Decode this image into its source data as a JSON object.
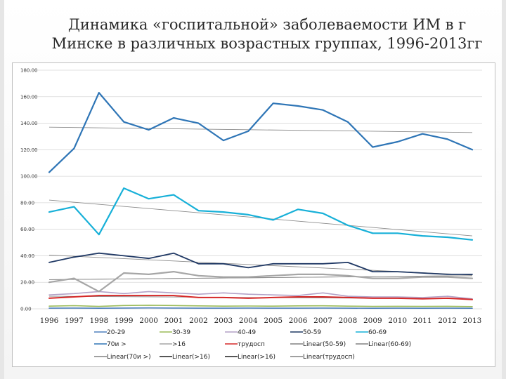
{
  "slide": {
    "title_line1": "Динамика «госпитальной» заболеваемости ИМ в г",
    "title_line2": "Минске в различных возрастных группах, 1996-2013гг"
  },
  "colors": {
    "grid": "#d9d9d9",
    "trend": "#8c8c8c"
  },
  "chart_data": {
    "type": "line",
    "title": "Динамика «госпитальной» заболеваемости ИМ в г Минске в различных возрастных группах, 1996-2013гг",
    "xlabel": "",
    "ylabel": "",
    "ylim": [
      0,
      180
    ],
    "yticks": [
      0,
      20,
      40,
      60,
      80,
      100,
      120,
      140,
      160,
      180
    ],
    "ytick_labels": [
      "0.00",
      "20.00",
      "40.00",
      "60.00",
      "80.00",
      "100.00",
      "120.00",
      "140.00",
      "160.00",
      "180.00"
    ],
    "categories": [
      "1996",
      "1997",
      "1998",
      "1999",
      "2000",
      "2001",
      "2002",
      "2003",
      "2004",
      "2005",
      "2006",
      "2007",
      "2008",
      "2009",
      "2010",
      "2011",
      "2012",
      "2013"
    ],
    "grid": "horizontal",
    "legend": "bottom",
    "series": [
      {
        "name": "20-29",
        "color": "#4f81bd",
        "width": 1.6,
        "values": [
          0.5,
          0.6,
          0.4,
          0.6,
          0.7,
          0.6,
          0.5,
          0.5,
          0.6,
          0.5,
          0.5,
          0.6,
          0.5,
          0.4,
          0.5,
          0.4,
          0.5,
          0.4
        ]
      },
      {
        "name": "30-39",
        "color": "#9bbb59",
        "width": 1.6,
        "values": [
          2.0,
          2.4,
          1.8,
          2.5,
          2.7,
          2.5,
          2.2,
          2.0,
          2.1,
          2.0,
          2.2,
          2.3,
          2.0,
          1.8,
          1.9,
          1.8,
          1.9,
          1.7
        ]
      },
      {
        "name": "40-49",
        "color": "#b3a2c7",
        "width": 1.6,
        "values": [
          10.5,
          11.5,
          13.0,
          11.5,
          13.0,
          12.0,
          11.0,
          12.0,
          11.0,
          10.5,
          10.0,
          12.0,
          9.5,
          9.0,
          9.0,
          8.5,
          9.5,
          7.5
        ]
      },
      {
        "name": "50-59",
        "color": "#1f3864",
        "width": 1.8,
        "values": [
          35,
          39,
          42,
          40,
          38,
          42,
          34,
          34,
          31,
          34,
          34,
          34,
          35,
          28,
          28,
          27,
          26,
          26
        ]
      },
      {
        "name": "60-69",
        "color": "#17b0d8",
        "width": 2.2,
        "values": [
          73,
          77,
          56,
          91,
          83,
          86,
          74,
          73,
          71,
          67,
          75,
          72,
          63,
          57,
          57,
          55,
          54,
          52
        ]
      },
      {
        "name": "70и >",
        "color": "#2e75b6",
        "width": 2.2,
        "values": [
          103,
          121,
          163,
          141,
          135,
          144,
          140,
          127,
          134,
          155,
          153,
          150,
          141,
          122,
          126,
          132,
          128,
          120
        ]
      },
      {
        "name": ">16",
        "color": "#a6a6a6",
        "width": 2.2,
        "values": [
          20,
          23,
          13,
          27,
          26,
          28,
          25,
          24,
          24,
          25,
          26,
          26,
          25,
          23,
          23,
          24,
          24,
          23
        ]
      },
      {
        "name": "трудосп",
        "color": "#d62828",
        "width": 2.0,
        "values": [
          8,
          9,
          10,
          10,
          10,
          10,
          8.5,
          8.5,
          8,
          8.5,
          9,
          9,
          8.5,
          8,
          8,
          7.5,
          8,
          7
        ]
      }
    ],
    "trendlines": [
      {
        "name": "Linear(50-59)",
        "color": "#8c8c8c",
        "from": 40.5,
        "to": 25.5
      },
      {
        "name": "Linear(60-69)",
        "color": "#8c8c8c",
        "from": 82,
        "to": 55
      },
      {
        "name": "Linear(70и >)",
        "color": "#8c8c8c",
        "from": 137,
        "to": 133
      },
      {
        "name": "Linear(>16)",
        "color": "#8c8c8c",
        "from": 22,
        "to": 25
      },
      {
        "name": "Linear(>16)",
        "color": "#8c8c8c",
        "from": 22,
        "to": 25
      },
      {
        "name": "Linear(трудосп)",
        "color": "#8c8c8c",
        "from": 9.5,
        "to": 7.5
      }
    ],
    "legend_entries": [
      {
        "label": "20-29",
        "color": "#4f81bd"
      },
      {
        "label": "30-39",
        "color": "#9bbb59"
      },
      {
        "label": "40-49",
        "color": "#b3a2c7"
      },
      {
        "label": "50-59",
        "color": "#1f3864"
      },
      {
        "label": "60-69",
        "color": "#17b0d8"
      },
      {
        "label": "70и >",
        "color": "#2e75b6"
      },
      {
        "label": ">16",
        "color": "#a6a6a6"
      },
      {
        "label": "трудосп",
        "color": "#d62828"
      },
      {
        "label": "Linear(50-59)",
        "color": "#808080"
      },
      {
        "label": "Linear(60-69)",
        "color": "#808080"
      },
      {
        "label": "Linear(70и >)",
        "color": "#808080"
      },
      {
        "label": "Linear(>16)",
        "color": "#1f1f1f"
      },
      {
        "label": "Linear(>16)",
        "color": "#1f1f1f"
      },
      {
        "label": "Linear(трудосп)",
        "color": "#808080"
      }
    ]
  }
}
